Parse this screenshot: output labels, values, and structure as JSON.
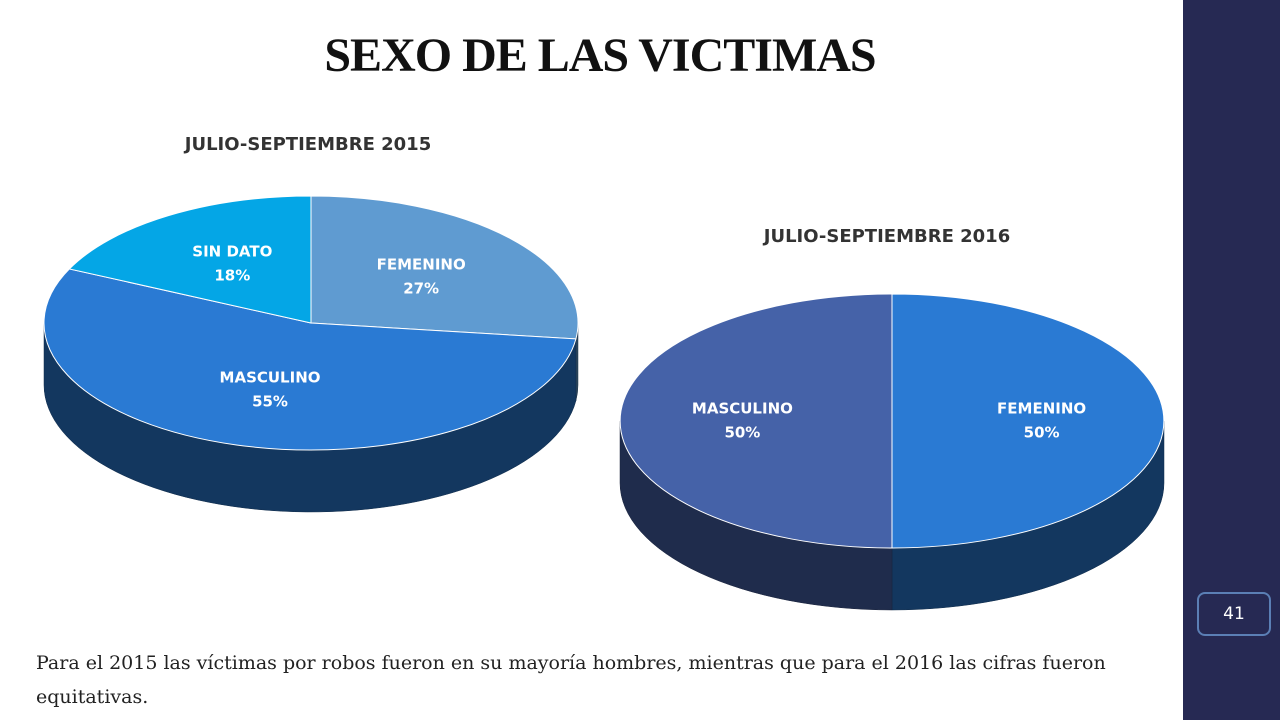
{
  "title": "SEXO DE LAS VICTIMAS",
  "caption": "Para el 2015 las víctimas por robos fueron en su mayoría hombres, mientras que para el 2016 las cifras fueron equitativas.",
  "page_number": "41",
  "chart_data": [
    {
      "type": "pie",
      "title": "JULIO-SEPTIEMBRE 2015",
      "categories": [
        "FEMENINO",
        "MASCULINO",
        "SIN DATO"
      ],
      "values": [
        27,
        55,
        18
      ],
      "value_labels": [
        "27%",
        "55%",
        "18%"
      ],
      "colors": [
        "#5f9bd1",
        "#2a7ad3",
        "#04a6e6"
      ]
    },
    {
      "type": "pie",
      "title": "JULIO-SEPTIEMBRE 2016",
      "categories": [
        "FEMENINO",
        "MASCULINO"
      ],
      "values": [
        50,
        50
      ],
      "value_labels": [
        "50%",
        "50%"
      ],
      "colors": [
        "#2a7ad3",
        "#4562a8"
      ]
    }
  ]
}
